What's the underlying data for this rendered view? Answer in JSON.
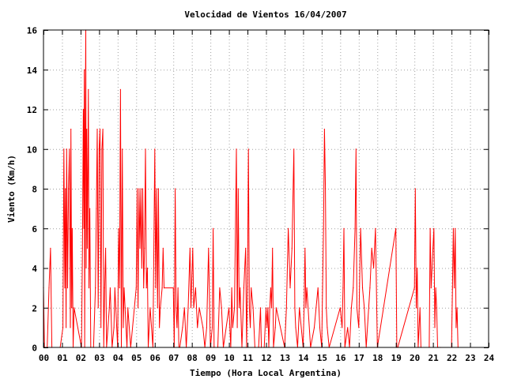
{
  "chart_data": {
    "type": "line",
    "title": "Velocidad de Vientos 16/04/2007",
    "xlabel": "Tiempo (Hora Local Argentina)",
    "ylabel": "Viento (Km/h)",
    "xlim": [
      0,
      24
    ],
    "ylim": [
      0,
      16
    ],
    "grid": true,
    "color": "#ff0000",
    "x_ticks": [
      "00",
      "01",
      "02",
      "03",
      "04",
      "05",
      "06",
      "07",
      "08",
      "09",
      "10",
      "11",
      "12",
      "13",
      "14",
      "15",
      "16",
      "17",
      "18",
      "19",
      "20",
      "21",
      "22",
      "23",
      "24"
    ],
    "y_ticks": [
      "0",
      "2",
      "4",
      "6",
      "8",
      "10",
      "12",
      "14",
      "16"
    ],
    "series": [
      {
        "values": [
          [
            0.0,
            3
          ],
          [
            0.05,
            0
          ],
          [
            0.2,
            0
          ],
          [
            0.3,
            3
          ],
          [
            0.38,
            5
          ],
          [
            0.45,
            0
          ],
          [
            0.9,
            0
          ],
          [
            1.05,
            1
          ],
          [
            1.1,
            10
          ],
          [
            1.15,
            3
          ],
          [
            1.18,
            8
          ],
          [
            1.22,
            1
          ],
          [
            1.25,
            10
          ],
          [
            1.3,
            3
          ],
          [
            1.35,
            8
          ],
          [
            1.4,
            10
          ],
          [
            1.45,
            1
          ],
          [
            1.48,
            11
          ],
          [
            1.52,
            2
          ],
          [
            1.55,
            6
          ],
          [
            1.6,
            0
          ],
          [
            1.65,
            2
          ],
          [
            2.05,
            0
          ],
          [
            2.1,
            5
          ],
          [
            2.15,
            12
          ],
          [
            2.18,
            6
          ],
          [
            2.2,
            14
          ],
          [
            2.22,
            0
          ],
          [
            2.25,
            11
          ],
          [
            2.28,
            16
          ],
          [
            2.3,
            4
          ],
          [
            2.33,
            11
          ],
          [
            2.36,
            5
          ],
          [
            2.4,
            10
          ],
          [
            2.42,
            13
          ],
          [
            2.45,
            3
          ],
          [
            2.5,
            7
          ],
          [
            2.55,
            0
          ],
          [
            2.7,
            0
          ],
          [
            2.8,
            3
          ],
          [
            2.85,
            7
          ],
          [
            2.9,
            11
          ],
          [
            2.95,
            2
          ],
          [
            3.0,
            10
          ],
          [
            3.05,
            11
          ],
          [
            3.1,
            1
          ],
          [
            3.15,
            10
          ],
          [
            3.2,
            11
          ],
          [
            3.25,
            0
          ],
          [
            3.3,
            3
          ],
          [
            3.35,
            5
          ],
          [
            3.4,
            0
          ],
          [
            3.55,
            2
          ],
          [
            3.6,
            3
          ],
          [
            3.7,
            0
          ],
          [
            3.8,
            1
          ],
          [
            3.85,
            3
          ],
          [
            4.0,
            0
          ],
          [
            4.05,
            6
          ],
          [
            4.1,
            3
          ],
          [
            4.15,
            13
          ],
          [
            4.2,
            0
          ],
          [
            4.25,
            10
          ],
          [
            4.3,
            1
          ],
          [
            4.35,
            3
          ],
          [
            4.4,
            2
          ],
          [
            4.5,
            0
          ],
          [
            4.55,
            2
          ],
          [
            4.7,
            0
          ],
          [
            5.0,
            3
          ],
          [
            5.05,
            8
          ],
          [
            5.1,
            2
          ],
          [
            5.15,
            8
          ],
          [
            5.2,
            5
          ],
          [
            5.25,
            8
          ],
          [
            5.3,
            4
          ],
          [
            5.35,
            8
          ],
          [
            5.4,
            3
          ],
          [
            5.45,
            5
          ],
          [
            5.5,
            10
          ],
          [
            5.55,
            3
          ],
          [
            5.6,
            4
          ],
          [
            5.65,
            0
          ],
          [
            5.75,
            2
          ],
          [
            5.9,
            0
          ],
          [
            6.0,
            10
          ],
          [
            6.05,
            3
          ],
          [
            6.1,
            8
          ],
          [
            6.15,
            2
          ],
          [
            6.2,
            8
          ],
          [
            6.25,
            1
          ],
          [
            6.3,
            2
          ],
          [
            6.4,
            3
          ],
          [
            6.45,
            5
          ],
          [
            6.5,
            3
          ],
          [
            7.0,
            3
          ],
          [
            7.05,
            0
          ],
          [
            7.1,
            8
          ],
          [
            7.15,
            2
          ],
          [
            7.2,
            1
          ],
          [
            7.25,
            3
          ],
          [
            7.3,
            0
          ],
          [
            7.35,
            0
          ],
          [
            7.5,
            1
          ],
          [
            7.6,
            2
          ],
          [
            7.7,
            0
          ],
          [
            7.8,
            2
          ],
          [
            7.9,
            5
          ],
          [
            7.95,
            2
          ],
          [
            8.05,
            5
          ],
          [
            8.1,
            2
          ],
          [
            8.2,
            3
          ],
          [
            8.3,
            1
          ],
          [
            8.4,
            2
          ],
          [
            8.6,
            1
          ],
          [
            8.7,
            0
          ],
          [
            8.8,
            1
          ],
          [
            8.9,
            5
          ],
          [
            9.0,
            0
          ],
          [
            9.1,
            1
          ],
          [
            9.15,
            6
          ],
          [
            9.2,
            0
          ],
          [
            9.4,
            0
          ],
          [
            9.5,
            3
          ],
          [
            9.6,
            2
          ],
          [
            9.7,
            0
          ],
          [
            10.0,
            2
          ],
          [
            10.1,
            0
          ],
          [
            10.15,
            3
          ],
          [
            10.2,
            1
          ],
          [
            10.3,
            2
          ],
          [
            10.4,
            10
          ],
          [
            10.45,
            1
          ],
          [
            10.5,
            8
          ],
          [
            10.55,
            2
          ],
          [
            10.6,
            3
          ],
          [
            10.7,
            0
          ],
          [
            10.8,
            3
          ],
          [
            10.9,
            5
          ],
          [
            10.95,
            0
          ],
          [
            11.0,
            3
          ],
          [
            11.05,
            10
          ],
          [
            11.1,
            2
          ],
          [
            11.15,
            1
          ],
          [
            11.2,
            3
          ],
          [
            11.3,
            2
          ],
          [
            11.4,
            0
          ],
          [
            11.6,
            0
          ],
          [
            11.7,
            2
          ],
          [
            11.75,
            0
          ],
          [
            11.9,
            0
          ],
          [
            12.0,
            2
          ],
          [
            12.05,
            1
          ],
          [
            12.1,
            2
          ],
          [
            12.15,
            0
          ],
          [
            12.2,
            2
          ],
          [
            12.25,
            3
          ],
          [
            12.3,
            2
          ],
          [
            12.35,
            5
          ],
          [
            12.4,
            0
          ],
          [
            12.5,
            1
          ],
          [
            12.55,
            2
          ],
          [
            13.0,
            0
          ],
          [
            13.1,
            2
          ],
          [
            13.2,
            6
          ],
          [
            13.3,
            3
          ],
          [
            13.4,
            5
          ],
          [
            13.5,
            10
          ],
          [
            13.55,
            2
          ],
          [
            13.6,
            1
          ],
          [
            13.7,
            0
          ],
          [
            13.8,
            2
          ],
          [
            14.0,
            0
          ],
          [
            14.05,
            2
          ],
          [
            14.1,
            5
          ],
          [
            14.15,
            2
          ],
          [
            14.2,
            3
          ],
          [
            14.4,
            0
          ],
          [
            14.6,
            1
          ],
          [
            14.7,
            2
          ],
          [
            14.8,
            3
          ],
          [
            14.9,
            1
          ],
          [
            15.0,
            0
          ],
          [
            15.05,
            3
          ],
          [
            15.1,
            6
          ],
          [
            15.15,
            11
          ],
          [
            15.2,
            8
          ],
          [
            15.25,
            2
          ],
          [
            15.3,
            1
          ],
          [
            15.4,
            0
          ],
          [
            16.0,
            2
          ],
          [
            16.1,
            1
          ],
          [
            16.15,
            3
          ],
          [
            16.2,
            6
          ],
          [
            16.25,
            0
          ],
          [
            16.4,
            1
          ],
          [
            16.5,
            0
          ],
          [
            16.6,
            2
          ],
          [
            16.7,
            3
          ],
          [
            16.8,
            6
          ],
          [
            16.85,
            10
          ],
          [
            16.9,
            2
          ],
          [
            17.0,
            1
          ],
          [
            17.1,
            6
          ],
          [
            17.2,
            3
          ],
          [
            17.3,
            2
          ],
          [
            17.4,
            0
          ],
          [
            17.6,
            3
          ],
          [
            17.7,
            5
          ],
          [
            17.8,
            4
          ],
          [
            17.9,
            6
          ],
          [
            18.0,
            0
          ],
          [
            19.0,
            6
          ],
          [
            19.05,
            0
          ],
          [
            19.1,
            0
          ],
          [
            20.0,
            3
          ],
          [
            20.05,
            8
          ],
          [
            20.1,
            2
          ],
          [
            20.15,
            4
          ],
          [
            20.2,
            0
          ],
          [
            20.3,
            2
          ],
          [
            20.35,
            0
          ],
          [
            20.8,
            0
          ],
          [
            20.85,
            6
          ],
          [
            20.9,
            3
          ],
          [
            21.0,
            5
          ],
          [
            21.05,
            6
          ],
          [
            21.1,
            1
          ],
          [
            21.15,
            3
          ],
          [
            21.2,
            2
          ],
          [
            21.25,
            0
          ],
          [
            21.3,
            0
          ],
          [
            21.4,
            0
          ],
          [
            22.0,
            0
          ],
          [
            22.05,
            3
          ],
          [
            22.1,
            6
          ],
          [
            22.15,
            3
          ],
          [
            22.2,
            6
          ],
          [
            22.25,
            1
          ],
          [
            22.3,
            2
          ],
          [
            22.35,
            0
          ]
        ]
      }
    ]
  }
}
